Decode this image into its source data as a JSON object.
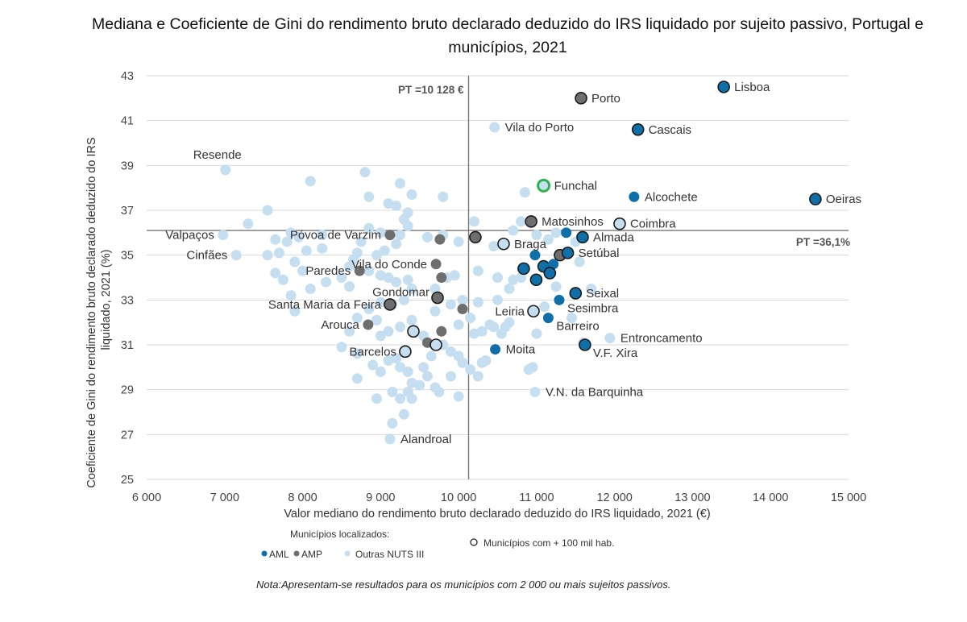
{
  "chart_data": {
    "type": "scatter",
    "title": "Mediana e Coeficiente de Gini do rendimento bruto declarado deduzido do IRS liquidado por sujeito passivo, Portugal e municípios, 2021",
    "xlabel": "Valor mediano do rendimento bruto declarado deduzido do IRS liquidado, 2021 (€)",
    "ylabel": "Coeficiente de Gini do rendimento bruto declarado deduzido do IRS liquidado, 2021 (%)",
    "xlim": [
      6000,
      15000
    ],
    "ylim": [
      25,
      43
    ],
    "xticks": [
      6000,
      7000,
      8000,
      9000,
      10000,
      11000,
      12000,
      13000,
      14000,
      15000
    ],
    "xtick_labels": [
      "6 000",
      "7 000",
      "8 000",
      "9 000",
      "10 000",
      "11 000",
      "12 000",
      "13 000",
      "14 000",
      "15 000"
    ],
    "yticks": [
      25,
      27,
      29,
      31,
      33,
      35,
      37,
      39,
      41,
      43
    ],
    "grid": "horizontal",
    "reference_lines": {
      "x": {
        "value": 10128,
        "label": "PT =10 128 €"
      },
      "y": {
        "value": 36.1,
        "label": "PT =36,1%"
      }
    },
    "colors": {
      "AML": "#0f6fa8",
      "AMP": "#6e6e6e",
      "Outras NUTS III": "#c6dff0",
      "outline": "#1b1b1b",
      "highlight": "#2eb34c"
    },
    "legend": {
      "heading": "Municípios localizados:",
      "items": [
        "AML",
        "AMP",
        "Outras NUTS III"
      ],
      "outline_item": "Municípios com + 100 mil hab.",
      "placement": "bottom"
    },
    "labeled_points": [
      {
        "name": "Lisboa",
        "x": 13400,
        "y": 42.5,
        "group": "AML",
        "large": true,
        "label_side": "right"
      },
      {
        "name": "Porto",
        "x": 11570,
        "y": 42.0,
        "group": "AMP",
        "large": true,
        "label_side": "right"
      },
      {
        "name": "Cascais",
        "x": 12300,
        "y": 40.6,
        "group": "AML",
        "large": true,
        "label_side": "right"
      },
      {
        "name": "Vila do Porto",
        "x": 10460,
        "y": 40.7,
        "group": "Outras NUTS III",
        "large": false,
        "label_side": "right"
      },
      {
        "name": "Resende",
        "x": 7010,
        "y": 38.8,
        "group": "Outras NUTS III",
        "large": false,
        "label_side": "above"
      },
      {
        "name": "Funchal",
        "x": 11090,
        "y": 38.1,
        "group": "Outras NUTS III",
        "large": true,
        "highlight": true,
        "label_side": "right"
      },
      {
        "name": "Alcochete",
        "x": 12250,
        "y": 37.6,
        "group": "AML",
        "large": false,
        "label_side": "right"
      },
      {
        "name": "Oeiras",
        "x": 14575,
        "y": 37.5,
        "group": "AML",
        "large": true,
        "label_side": "right"
      },
      {
        "name": "Matosinhos",
        "x": 10930,
        "y": 36.5,
        "group": "AMP",
        "large": true,
        "label_side": "right"
      },
      {
        "name": "Coimbra",
        "x": 12065,
        "y": 36.4,
        "group": "Outras NUTS III",
        "large": true,
        "label_side": "right"
      },
      {
        "name": "Valpaços",
        "x": 6980,
        "y": 35.9,
        "group": "Outras NUTS III",
        "large": false,
        "label_side": "left"
      },
      {
        "name": "Póvoa de Varzim",
        "x": 9120,
        "y": 35.9,
        "group": "AMP",
        "large": false,
        "label_side": "left"
      },
      {
        "name": "Almada",
        "x": 11590,
        "y": 35.8,
        "group": "AML",
        "large": true,
        "label_side": "right"
      },
      {
        "name": "Braga",
        "x": 10577,
        "y": 35.5,
        "group": "Outras NUTS III",
        "large": true,
        "label_side": "right"
      },
      {
        "name": "Cinfães",
        "x": 7150,
        "y": 35.0,
        "group": "Outras NUTS III",
        "large": false,
        "label_side": "left"
      },
      {
        "name": "Setúbal",
        "x": 11400,
        "y": 35.1,
        "group": "AML",
        "large": true,
        "label_side": "right"
      },
      {
        "name": "Vila do Conde",
        "x": 9710,
        "y": 34.6,
        "group": "AMP",
        "large": false,
        "label_side": "left"
      },
      {
        "name": "Paredes",
        "x": 8730,
        "y": 34.3,
        "group": "AMP",
        "large": false,
        "label_side": "left"
      },
      {
        "name": "Gondomar",
        "x": 9730,
        "y": 33.1,
        "group": "AMP",
        "large": true,
        "label_side": "above-left"
      },
      {
        "name": "Seixal",
        "x": 11500,
        "y": 33.3,
        "group": "AML",
        "large": true,
        "label_side": "right"
      },
      {
        "name": "Santa Maria da Feira",
        "x": 9120,
        "y": 32.8,
        "group": "AMP",
        "large": true,
        "label_side": "left"
      },
      {
        "name": "Sesimbra",
        "x": 11290,
        "y": 33.0,
        "group": "AML",
        "large": false,
        "label_side": "below-right"
      },
      {
        "name": "Leiria",
        "x": 10960,
        "y": 32.5,
        "group": "Outras NUTS III",
        "large": true,
        "label_side": "left"
      },
      {
        "name": "Arouca",
        "x": 8840,
        "y": 31.9,
        "group": "AMP",
        "large": false,
        "label_side": "left"
      },
      {
        "name": "Barreiro",
        "x": 11150,
        "y": 32.2,
        "group": "AML",
        "large": false,
        "label_side": "below-right"
      },
      {
        "name": "Entroncamento",
        "x": 11940,
        "y": 31.3,
        "group": "Outras NUTS III",
        "large": false,
        "label_side": "right"
      },
      {
        "name": "Barcelos",
        "x": 9316,
        "y": 30.7,
        "group": "Outras NUTS III",
        "large": true,
        "label_side": "left"
      },
      {
        "name": "Moita",
        "x": 10470,
        "y": 30.8,
        "group": "AML",
        "large": false,
        "label_side": "right"
      },
      {
        "name": "V.F. Xira",
        "x": 11620,
        "y": 31.0,
        "group": "AML",
        "large": true,
        "label_side": "below-right"
      },
      {
        "name": "V.N. da Barquinha",
        "x": 10980,
        "y": 28.9,
        "group": "Outras NUTS III",
        "large": false,
        "label_side": "right"
      },
      {
        "name": "Alandroal",
        "x": 9120,
        "y": 26.8,
        "group": "Outras NUTS III",
        "large": false,
        "label_side": "right"
      }
    ],
    "unlabeled_points": [
      {
        "x": 9760,
        "y": 35.7,
        "group": "AMP",
        "large": false
      },
      {
        "x": 10215,
        "y": 35.8,
        "group": "AMP",
        "large": true
      },
      {
        "x": 9780,
        "y": 34.0,
        "group": "AMP",
        "large": false
      },
      {
        "x": 10050,
        "y": 32.6,
        "group": "AMP",
        "large": false
      },
      {
        "x": 9780,
        "y": 31.6,
        "group": "AMP",
        "large": false
      },
      {
        "x": 9600,
        "y": 31.1,
        "group": "AMP",
        "large": false
      },
      {
        "x": 11300,
        "y": 35.0,
        "group": "AMP",
        "large": true
      },
      {
        "x": 9420,
        "y": 31.6,
        "group": "Outras NUTS III",
        "large": true
      },
      {
        "x": 9710,
        "y": 31.0,
        "group": "Outras NUTS III",
        "large": true
      },
      {
        "x": 10980,
        "y": 35.0,
        "group": "AML",
        "large": false
      },
      {
        "x": 10835,
        "y": 34.4,
        "group": "AML",
        "large": true
      },
      {
        "x": 11090,
        "y": 34.5,
        "group": "AML",
        "large": true
      },
      {
        "x": 11215,
        "y": 34.6,
        "group": "AML",
        "large": false
      },
      {
        "x": 11170,
        "y": 34.2,
        "group": "AML",
        "large": true
      },
      {
        "x": 10995,
        "y": 33.9,
        "group": "AML",
        "large": true
      },
      {
        "x": 11380,
        "y": 36.0,
        "group": "AML",
        "large": false
      }
    ],
    "other_points": [
      [
        7550,
        37.0
      ],
      [
        7300,
        36.4
      ],
      [
        7650,
        35.7
      ],
      [
        7800,
        35.6
      ],
      [
        7850,
        36.0
      ],
      [
        7950,
        35.8
      ],
      [
        8100,
        38.3
      ],
      [
        8250,
        35.9
      ],
      [
        8250,
        35.3
      ],
      [
        8050,
        35.2
      ],
      [
        7700,
        35.1
      ],
      [
        7550,
        35.0
      ],
      [
        7900,
        34.7
      ],
      [
        8000,
        34.3
      ],
      [
        7650,
        34.2
      ],
      [
        7750,
        33.9
      ],
      [
        7850,
        33.2
      ],
      [
        7900,
        32.5
      ],
      [
        8100,
        33.5
      ],
      [
        8300,
        33.8
      ],
      [
        8500,
        34.0
      ],
      [
        8600,
        33.6
      ],
      [
        8650,
        34.8
      ],
      [
        8750,
        35.6
      ],
      [
        8800,
        38.7
      ],
      [
        8850,
        37.6
      ],
      [
        8850,
        36.2
      ],
      [
        9000,
        36.0
      ],
      [
        9100,
        37.3
      ],
      [
        9200,
        37.2
      ],
      [
        9250,
        38.2
      ],
      [
        9300,
        36.6
      ],
      [
        9350,
        36.9
      ],
      [
        9400,
        37.7
      ],
      [
        9350,
        36.3
      ],
      [
        9250,
        35.9
      ],
      [
        9200,
        35.5
      ],
      [
        9050,
        35.2
      ],
      [
        8950,
        35.0
      ],
      [
        8700,
        35.1
      ],
      [
        8600,
        34.5
      ],
      [
        8850,
        34.3
      ],
      [
        9000,
        34.1
      ],
      [
        9100,
        34.0
      ],
      [
        9200,
        33.8
      ],
      [
        9350,
        33.9
      ],
      [
        9400,
        33.5
      ],
      [
        9300,
        33.0
      ],
      [
        9150,
        32.8
      ],
      [
        9000,
        32.9
      ],
      [
        8850,
        32.6
      ],
      [
        8700,
        32.2
      ],
      [
        8600,
        31.6
      ],
      [
        8500,
        30.9
      ],
      [
        8700,
        30.6
      ],
      [
        8700,
        29.5
      ],
      [
        8900,
        30.1
      ],
      [
        9000,
        29.8
      ],
      [
        9100,
        30.3
      ],
      [
        9200,
        30.4
      ],
      [
        9250,
        30.0
      ],
      [
        9350,
        29.8
      ],
      [
        9400,
        29.3
      ],
      [
        9350,
        28.9
      ],
      [
        9150,
        28.9
      ],
      [
        8950,
        28.6
      ],
      [
        9250,
        28.6
      ],
      [
        9300,
        27.9
      ],
      [
        9150,
        27.5
      ],
      [
        9400,
        28.6
      ],
      [
        9500,
        29.2
      ],
      [
        9550,
        30.0
      ],
      [
        9650,
        30.5
      ],
      [
        9700,
        29.1
      ],
      [
        9750,
        28.9
      ],
      [
        9600,
        29.6
      ],
      [
        9900,
        29.6
      ],
      [
        10000,
        28.7
      ],
      [
        10050,
        30.2
      ],
      [
        10150,
        29.9
      ],
      [
        10250,
        29.6
      ],
      [
        10300,
        30.2
      ],
      [
        10350,
        30.3
      ],
      [
        9900,
        30.7
      ],
      [
        10000,
        30.5
      ],
      [
        9800,
        31.0
      ],
      [
        9550,
        31.4
      ],
      [
        9400,
        32.1
      ],
      [
        9250,
        31.8
      ],
      [
        9100,
        31.6
      ],
      [
        9000,
        31.4
      ],
      [
        8950,
        32.1
      ],
      [
        9700,
        32.5
      ],
      [
        9900,
        32.8
      ],
      [
        10050,
        33.0
      ],
      [
        10250,
        32.9
      ],
      [
        10150,
        32.2
      ],
      [
        10000,
        31.9
      ],
      [
        10200,
        31.5
      ],
      [
        10300,
        31.6
      ],
      [
        10450,
        31.8
      ],
      [
        10550,
        31.5
      ],
      [
        10650,
        32.0
      ],
      [
        10500,
        33.0
      ],
      [
        10650,
        33.5
      ],
      [
        10800,
        34.0
      ],
      [
        10500,
        34.0
      ],
      [
        10700,
        33.9
      ],
      [
        9700,
        33.5
      ],
      [
        9850,
        34.0
      ],
      [
        9950,
        34.1
      ],
      [
        9600,
        35.8
      ],
      [
        9800,
        35.9
      ],
      [
        10000,
        35.6
      ],
      [
        10200,
        36.5
      ],
      [
        10450,
        35.4
      ],
      [
        10700,
        36.1
      ],
      [
        10800,
        36.5
      ],
      [
        10850,
        37.8
      ],
      [
        11000,
        35.9
      ],
      [
        11150,
        35.7
      ],
      [
        11250,
        36.0
      ],
      [
        11500,
        35.6
      ],
      [
        11550,
        34.7
      ],
      [
        11250,
        33.6
      ],
      [
        11700,
        33.5
      ],
      [
        11450,
        32.2
      ],
      [
        11600,
        31.1
      ],
      [
        10950,
        30.0
      ],
      [
        10900,
        29.9
      ],
      [
        9800,
        37.6
      ],
      [
        10250,
        34.3
      ],
      [
        10400,
        31.9
      ],
      [
        10600,
        31.8
      ],
      [
        11000,
        31.5
      ],
      [
        11100,
        32.7
      ]
    ]
  },
  "note": "Nota:Apresentam-se resultados para os municípios com 2 000 ou mais sujeitos passivos."
}
